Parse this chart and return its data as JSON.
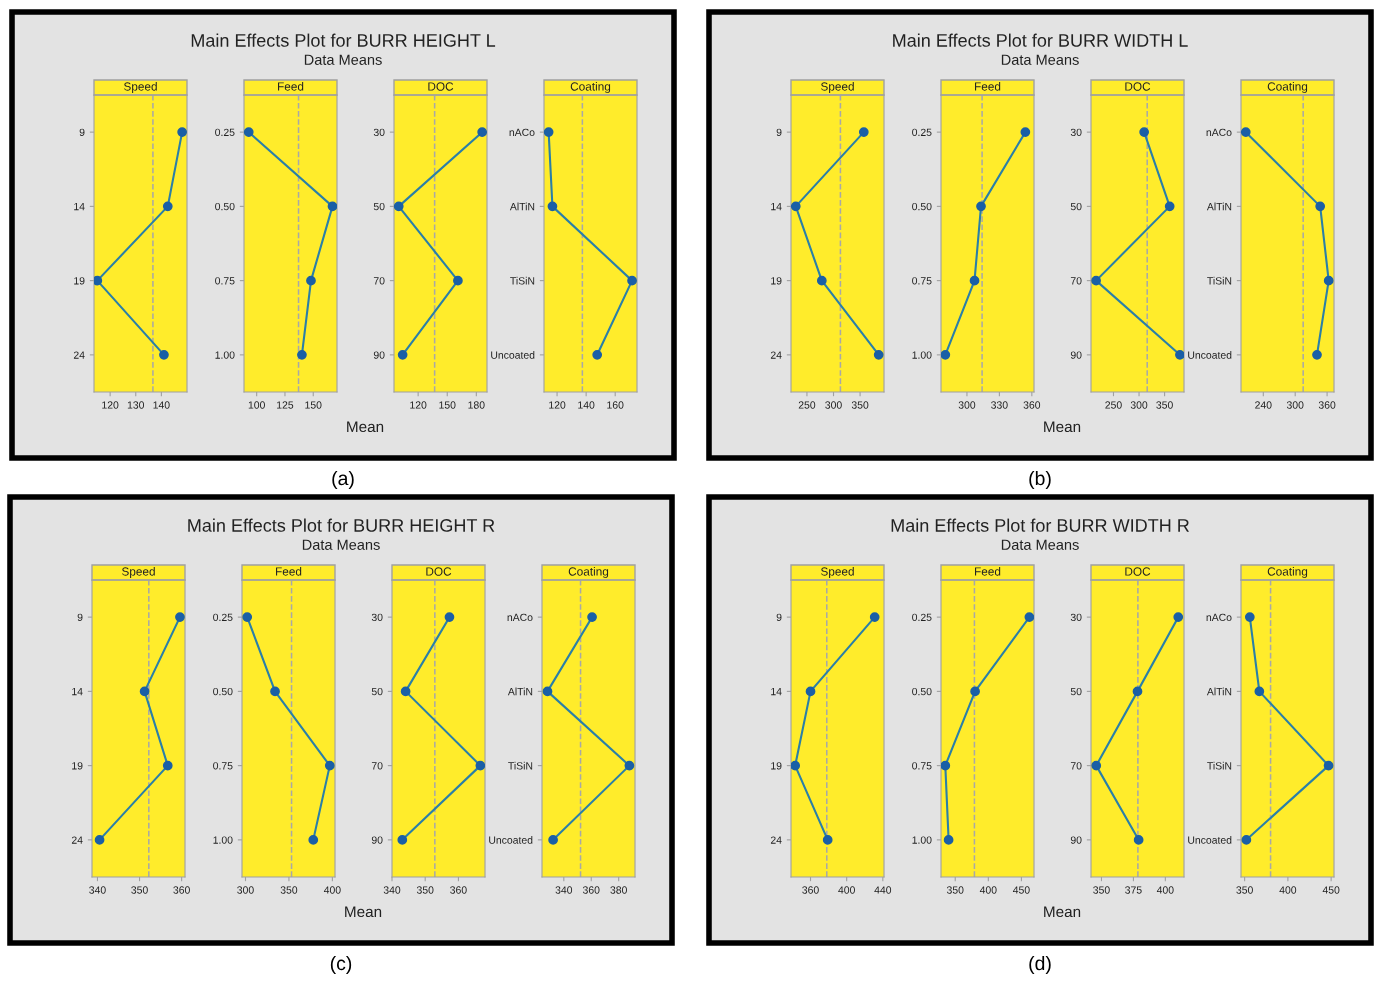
{
  "chart_data": [
    {
      "type": "other",
      "title": "Main Effects Plot for BURR HEIGHT L",
      "subtitle": "Data Means",
      "xlabel": "Mean",
      "annotations": [
        "(a)"
      ]
    },
    {
      "type": "line",
      "orientation": "horizontal",
      "title": "Speed",
      "categories": [
        "9",
        "14",
        "19",
        "24"
      ],
      "series": [
        {
          "color": "#1a5fa6",
          "values": [
            148.1,
            142.5,
            115.0,
            141.0
          ]
        }
      ],
      "xlim": [
        113.7,
        150
      ],
      "xticks": [
        120,
        130,
        140
      ],
      "ref_lines": [
        {
          "axis": "x",
          "value": 136.7,
          "color": "#a8a8a8",
          "line_style": "dashed"
        }
      ],
      "marker": "circle",
      "grid": false
    },
    {
      "type": "line",
      "orientation": "horizontal",
      "title": "Feed",
      "categories": [
        "0.25",
        "0.50",
        "0.75",
        "1.00"
      ],
      "series": [
        {
          "color": "#1a5fa6",
          "values": [
            93,
            167,
            148,
            140
          ]
        }
      ],
      "xlim": [
        88.8,
        171
      ],
      "xticks": [
        100,
        125,
        150
      ],
      "ref_lines": [
        {
          "axis": "x",
          "value": 137,
          "color": "#a8a8a8",
          "line_style": "dashed"
        }
      ],
      "marker": "circle",
      "grid": false
    },
    {
      "type": "line",
      "orientation": "horizontal",
      "title": "DOC",
      "categories": [
        "30",
        "50",
        "70",
        "90"
      ],
      "series": [
        {
          "color": "#1a5fa6",
          "values": [
            186,
            100,
            161,
            104
          ]
        }
      ],
      "xlim": [
        95.1,
        191
      ],
      "xticks": [
        120,
        150,
        180
      ],
      "ref_lines": [
        {
          "axis": "x",
          "value": 137,
          "color": "#a8a8a8",
          "line_style": "dashed"
        }
      ],
      "marker": "circle",
      "grid": false
    },
    {
      "type": "line",
      "orientation": "horizontal",
      "title": "Coating",
      "categories": [
        "nACo",
        "AlTiN",
        "TiSiN",
        "Uncoated"
      ],
      "series": [
        {
          "color": "#1a5fa6",
          "values": [
            114.2,
            116.8,
            171.6,
            147.6
          ]
        }
      ],
      "xlim": [
        111,
        175
      ],
      "xticks": [
        120,
        140,
        160
      ],
      "ref_lines": [
        {
          "axis": "x",
          "value": 137.4,
          "color": "#a8a8a8",
          "line_style": "dashed"
        }
      ],
      "marker": "circle",
      "grid": false
    },
    {
      "type": "other",
      "title": "Main Effects Plot for BURR WIDTH L",
      "subtitle": "Data Means",
      "xlabel": "Mean",
      "annotations": [
        "(b)"
      ]
    },
    {
      "type": "line",
      "orientation": "horizontal",
      "title": "Speed",
      "categories": [
        "9",
        "14",
        "19",
        "24"
      ],
      "series": [
        {
          "color": "#1a5fa6",
          "values": [
            357,
            229,
            278,
            385
          ]
        }
      ],
      "xlim": [
        220,
        395
      ],
      "xticks": [
        250,
        300,
        350
      ],
      "ref_lines": [
        {
          "axis": "x",
          "value": 313,
          "color": "#a8a8a8",
          "line_style": "dashed"
        }
      ],
      "marker": "circle",
      "grid": false
    },
    {
      "type": "line",
      "orientation": "horizontal",
      "title": "Feed",
      "categories": [
        "0.25",
        "0.50",
        "0.75",
        "1.00"
      ],
      "series": [
        {
          "color": "#1a5fa6",
          "values": [
            354,
            313,
            307,
            280
          ]
        }
      ],
      "xlim": [
        276,
        362
      ],
      "xticks": [
        300,
        330,
        360
      ],
      "ref_lines": [
        {
          "axis": "x",
          "value": 314,
          "color": "#a8a8a8",
          "line_style": "dashed"
        }
      ],
      "marker": "circle",
      "grid": false
    },
    {
      "type": "line",
      "orientation": "horizontal",
      "title": "DOC",
      "categories": [
        "30",
        "50",
        "70",
        "90"
      ],
      "series": [
        {
          "color": "#1a5fa6",
          "values": [
            310,
            360,
            216,
            380
          ]
        }
      ],
      "xlim": [
        206,
        388
      ],
      "xticks": [
        250,
        300,
        350
      ],
      "ref_lines": [
        {
          "axis": "x",
          "value": 316,
          "color": "#a8a8a8",
          "line_style": "dashed"
        }
      ],
      "marker": "circle",
      "grid": false
    },
    {
      "type": "line",
      "orientation": "horizontal",
      "title": "Coating",
      "categories": [
        "nACo",
        "AlTiN",
        "TiSiN",
        "Uncoated"
      ],
      "series": [
        {
          "color": "#1a5fa6",
          "values": [
            207,
            347,
            363,
            341
          ]
        }
      ],
      "xlim": [
        198,
        373
      ],
      "xticks": [
        240,
        300,
        360
      ],
      "ref_lines": [
        {
          "axis": "x",
          "value": 315,
          "color": "#a8a8a8",
          "line_style": "dashed"
        }
      ],
      "marker": "circle",
      "grid": false
    },
    {
      "type": "other",
      "title": "Main Effects Plot for BURR HEIGHT R",
      "subtitle": "Data Means",
      "xlabel": "Mean",
      "annotations": [
        "(c)"
      ]
    },
    {
      "type": "line",
      "orientation": "horizontal",
      "title": "Speed",
      "categories": [
        "9",
        "14",
        "19",
        "24"
      ],
      "series": [
        {
          "color": "#1a5fa6",
          "values": [
            359.6,
            351.2,
            356.7,
            340.5
          ]
        }
      ],
      "xlim": [
        338.7,
        360.8
      ],
      "xticks": [
        340,
        350,
        360
      ],
      "ref_lines": [
        {
          "axis": "x",
          "value": 352.2,
          "color": "#a8a8a8",
          "line_style": "dashed"
        }
      ],
      "marker": "circle",
      "grid": false
    },
    {
      "type": "line",
      "orientation": "horizontal",
      "title": "Feed",
      "categories": [
        "0.25",
        "0.50",
        "0.75",
        "1.00"
      ],
      "series": [
        {
          "color": "#1a5fa6",
          "values": [
            302,
            334,
            397,
            378
          ]
        }
      ],
      "xlim": [
        296,
        403
      ],
      "xticks": [
        300,
        350,
        400
      ],
      "ref_lines": [
        {
          "axis": "x",
          "value": 353,
          "color": "#a8a8a8",
          "line_style": "dashed"
        }
      ],
      "marker": "circle",
      "grid": false
    },
    {
      "type": "line",
      "orientation": "horizontal",
      "title": "DOC",
      "categories": [
        "30",
        "50",
        "70",
        "90"
      ],
      "series": [
        {
          "color": "#1a5fa6",
          "values": [
            357.3,
            344.1,
            366.6,
            343.1
          ]
        }
      ],
      "xlim": [
        340,
        368
      ],
      "xticks": [
        340,
        350,
        360
      ],
      "ref_lines": [
        {
          "axis": "x",
          "value": 352.9,
          "color": "#a8a8a8",
          "line_style": "dashed"
        }
      ],
      "marker": "circle",
      "grid": false
    },
    {
      "type": "line",
      "orientation": "horizontal",
      "title": "Coating",
      "categories": [
        "nACo",
        "AlTiN",
        "TiSiN",
        "Uncoated"
      ],
      "series": [
        {
          "color": "#1a5fa6",
          "values": [
            360.6,
            328.1,
            387.8,
            332.2
          ]
        }
      ],
      "xlim": [
        324.1,
        391.9
      ],
      "xticks": [
        340,
        360,
        380
      ],
      "ref_lines": [
        {
          "axis": "x",
          "value": 352.2,
          "color": "#a8a8a8",
          "line_style": "dashed"
        }
      ],
      "marker": "circle",
      "grid": false
    },
    {
      "type": "other",
      "title": "Main Effects Plot for BURR WIDTH R",
      "subtitle": "Data Means",
      "xlabel": "Mean",
      "annotations": [
        "(d)"
      ]
    },
    {
      "type": "line",
      "orientation": "horizontal",
      "title": "Speed",
      "categories": [
        "9",
        "14",
        "19",
        "24"
      ],
      "series": [
        {
          "color": "#1a5fa6",
          "values": [
            431,
            360,
            343,
            379
          ]
        }
      ],
      "xlim": [
        338.4,
        441.3
      ],
      "xticks": [
        360,
        400,
        440
      ],
      "ref_lines": [
        {
          "axis": "x",
          "value": 378,
          "color": "#a8a8a8",
          "line_style": "dashed"
        }
      ],
      "marker": "circle",
      "grid": false
    },
    {
      "type": "line",
      "orientation": "horizontal",
      "title": "Feed",
      "categories": [
        "0.25",
        "0.50",
        "0.75",
        "1.00"
      ],
      "series": [
        {
          "color": "#1a5fa6",
          "values": [
            462,
            380,
            335,
            340
          ]
        }
      ],
      "xlim": [
        328.5,
        469
      ],
      "xticks": [
        350,
        400,
        450
      ],
      "ref_lines": [
        {
          "axis": "x",
          "value": 379,
          "color": "#a8a8a8",
          "line_style": "dashed"
        }
      ],
      "marker": "circle",
      "grid": false
    },
    {
      "type": "line",
      "orientation": "horizontal",
      "title": "DOC",
      "categories": [
        "30",
        "50",
        "70",
        "90"
      ],
      "series": [
        {
          "color": "#1a5fa6",
          "values": [
            410.1,
            378.2,
            345.9,
            379.1
          ]
        }
      ],
      "xlim": [
        341.8,
        414.6
      ],
      "xticks": [
        350,
        375,
        400
      ],
      "ref_lines": [
        {
          "axis": "x",
          "value": 378.5,
          "color": "#a8a8a8",
          "line_style": "dashed"
        }
      ],
      "marker": "circle",
      "grid": false
    },
    {
      "type": "line",
      "orientation": "horizontal",
      "title": "Coating",
      "categories": [
        "nACo",
        "AlTiN",
        "TiSiN",
        "Uncoated"
      ],
      "series": [
        {
          "color": "#1a5fa6",
          "values": [
            356,
            367,
            447,
            352
          ]
        }
      ],
      "xlim": [
        345.8,
        453.3
      ],
      "xticks": [
        350,
        400,
        450
      ],
      "ref_lines": [
        {
          "axis": "x",
          "value": 380,
          "color": "#a8a8a8",
          "line_style": "dashed"
        }
      ],
      "marker": "circle",
      "grid": false
    }
  ]
}
